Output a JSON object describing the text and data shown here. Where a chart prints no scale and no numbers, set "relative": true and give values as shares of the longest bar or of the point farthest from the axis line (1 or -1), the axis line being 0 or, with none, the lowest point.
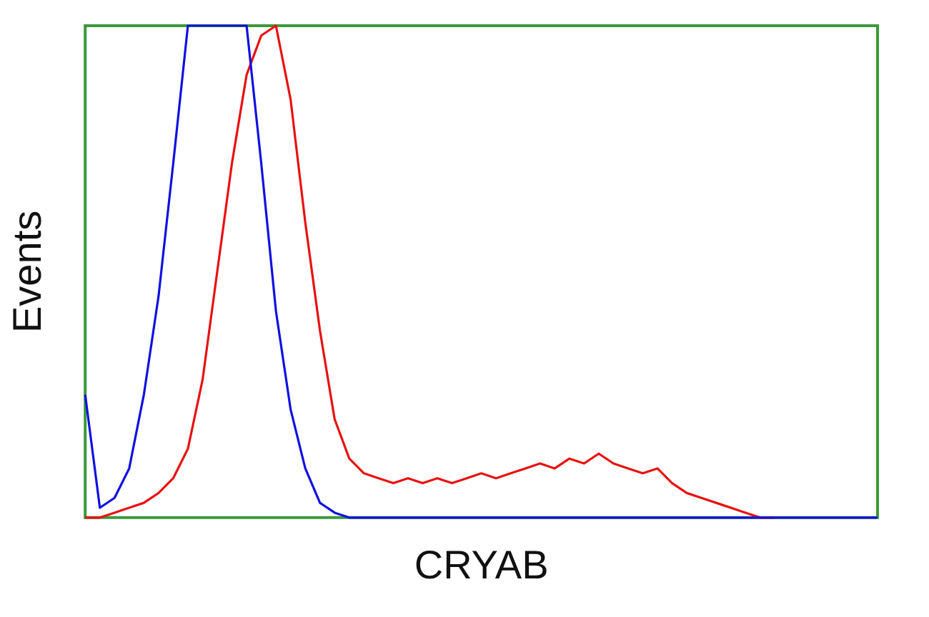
{
  "chart_data": {
    "type": "line",
    "relative": true,
    "xlabel": "CRYAB",
    "ylabel": "Events",
    "grid": false,
    "legend": false,
    "marker": "none",
    "categories": [
      null,
      null,
      null,
      null,
      null,
      null,
      null,
      null,
      null,
      null,
      null,
      null,
      null,
      null,
      null,
      null,
      null,
      null,
      null,
      null,
      null,
      null,
      null,
      null,
      null,
      null,
      null,
      null,
      null,
      null,
      null,
      null,
      null,
      null,
      null,
      null,
      null,
      null,
      null,
      null,
      null,
      null,
      null,
      null,
      null,
      null,
      null,
      null,
      null,
      null,
      null,
      null,
      null,
      null,
      null
    ],
    "series": [
      {
        "color": "#1010e0",
        "values": [
          0.25,
          0.02,
          0.04,
          0.1,
          0.25,
          0.45,
          0.72,
          1,
          1,
          1,
          1,
          1,
          0.72,
          0.42,
          0.22,
          0.1,
          0.03,
          0.01,
          0,
          0,
          0,
          0,
          0,
          0,
          0,
          0,
          0,
          0,
          0,
          0,
          0,
          0,
          0,
          0,
          0,
          0,
          0,
          0,
          0,
          0,
          0,
          0,
          0,
          0,
          0,
          0,
          0,
          0,
          0,
          0,
          0,
          0,
          0,
          0,
          0
        ]
      },
      {
        "color": "#e81010",
        "values": [
          0,
          0,
          0.01,
          0.02,
          0.03,
          0.05,
          0.08,
          0.14,
          0.28,
          0.5,
          0.72,
          0.9,
          0.98,
          1,
          0.85,
          0.6,
          0.38,
          0.2,
          0.12,
          0.09,
          0.08,
          0.07,
          0.08,
          0.07,
          0.08,
          0.07,
          0.08,
          0.09,
          0.08,
          0.09,
          0.1,
          0.11,
          0.1,
          0.12,
          0.11,
          0.13,
          0.11,
          0.1,
          0.09,
          0.1,
          0.07,
          0.05,
          0.04,
          0.03,
          0.02,
          0.01,
          0,
          0,
          null,
          null,
          null,
          null,
          null,
          null,
          null
        ]
      }
    ]
  }
}
